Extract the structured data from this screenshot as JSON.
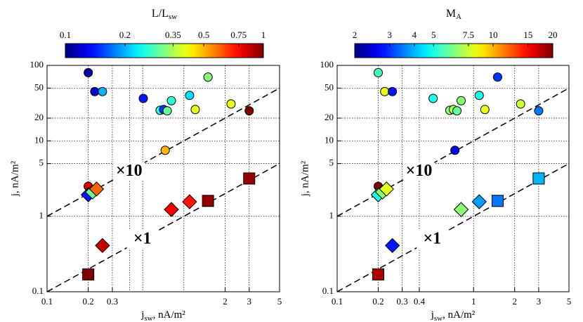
{
  "chart_data": [
    {
      "type": "scatter",
      "log_x": true,
      "log_y": true,
      "grid": true,
      "colorbar": {
        "title": "L/L",
        "title_sub": "sw",
        "lim": [
          0.1,
          1
        ],
        "ticks": [
          0.1,
          0.2,
          0.35,
          0.5,
          0.75,
          1
        ],
        "log": true,
        "colormap": "jet"
      },
      "xlabel": [
        "j",
        "sw",
        ", nA/m²"
      ],
      "ylabel": "j, nA/m²",
      "xlim": [
        0.1,
        5
      ],
      "ylim": [
        0.1,
        100
      ],
      "xticks": [
        0.1,
        0.2,
        0.3,
        2,
        3,
        5
      ],
      "yticks": [
        0.1,
        1,
        5,
        10,
        20,
        50,
        100
      ],
      "xgrid": [
        0.2,
        0.3,
        0.4,
        0.5,
        1,
        2,
        3
      ],
      "ygrid": [
        1,
        5,
        10,
        20,
        50
      ],
      "ref_lines": [
        {
          "slope": 10,
          "label": "×10"
        },
        {
          "slope": 1,
          "label": "×1"
        }
      ],
      "series": [
        {
          "marker": "circle",
          "x": [
            0.2,
            0.223,
            0.254,
            0.505,
            0.67,
            0.711,
            0.755,
            0.81,
            0.73,
            1.1,
            1.21,
            1.5,
            2.21,
            3.0,
            0.2
          ],
          "values": [
            80,
            45,
            45,
            36.5,
            25.4,
            26,
            25,
            34,
            7.5,
            40,
            26,
            70,
            30.8,
            25,
            2.5
          ],
          "color_values": [
            0.11,
            0.12,
            0.2,
            0.14,
            0.25,
            0.15,
            0.3,
            0.26,
            0.5,
            0.22,
            0.4,
            0.32,
            0.4,
            1,
            0.8
          ]
        },
        {
          "marker": "diamond",
          "x": [
            0.2,
            0.215,
            0.23,
            0.254,
            0.81,
            1.1
          ],
          "values": [
            1.93,
            2.1,
            2.3,
            0.41,
            1.23,
            1.56
          ],
          "color_values": [
            0.14,
            0.3,
            0.6,
            0.85,
            0.75,
            0.72
          ]
        },
        {
          "marker": "square",
          "x": [
            0.2,
            1.5,
            3.0
          ],
          "values": [
            0.17,
            1.6,
            3.17
          ],
          "color_values": [
            1,
            0.95,
            0.95
          ]
        }
      ]
    },
    {
      "type": "scatter",
      "log_x": true,
      "log_y": true,
      "grid": true,
      "colorbar": {
        "title": "M",
        "title_sub": "A",
        "lim": [
          2,
          20
        ],
        "ticks": [
          2,
          3,
          4,
          5,
          7.5,
          10,
          15,
          20
        ],
        "log": true,
        "colormap": "jet"
      },
      "xlabel": [
        "j",
        "sw",
        ", nA/m²"
      ],
      "ylabel": "j, nA/m²",
      "xlim": [
        0.1,
        5
      ],
      "ylim": [
        0.1,
        100
      ],
      "xticks": [
        0.1,
        0.2,
        0.3,
        0.4,
        1,
        2,
        3,
        5
      ],
      "yticks": [
        0.1,
        1,
        5,
        10,
        20,
        50,
        100
      ],
      "xgrid": [
        0.2,
        0.3,
        0.4,
        1,
        2,
        3
      ],
      "ygrid": [
        1,
        5,
        10,
        20,
        50
      ],
      "ref_lines": [
        {
          "slope": 10,
          "label": "×10"
        },
        {
          "slope": 1,
          "label": "×1"
        }
      ],
      "series": [
        {
          "marker": "circle",
          "x": [
            0.2,
            0.223,
            0.254,
            0.505,
            0.67,
            0.711,
            0.755,
            0.81,
            0.73,
            1.1,
            1.21,
            1.5,
            2.21,
            3.0,
            0.2
          ],
          "values": [
            80,
            45,
            45,
            36.5,
            25.4,
            26,
            25,
            34,
            7.5,
            40,
            26,
            70,
            30.8,
            25,
            2.5
          ],
          "color_values": [
            5.5,
            8,
            2.8,
            5,
            6.5,
            7,
            6,
            6.5,
            2.6,
            5,
            8,
            3,
            7.5,
            3.5,
            20
          ]
        },
        {
          "marker": "diamond",
          "x": [
            0.2,
            0.215,
            0.23,
            0.254,
            0.81,
            1.1
          ],
          "values": [
            1.93,
            2.1,
            2.3,
            0.41,
            1.23,
            1.56
          ],
          "color_values": [
            5,
            6.5,
            8,
            2.8,
            6.5,
            3.8
          ]
        },
        {
          "marker": "square",
          "x": [
            0.2,
            1.5,
            3.0
          ],
          "values": [
            0.17,
            1.6,
            3.17
          ],
          "color_values": [
            18,
            3.5,
            4
          ]
        }
      ]
    }
  ]
}
